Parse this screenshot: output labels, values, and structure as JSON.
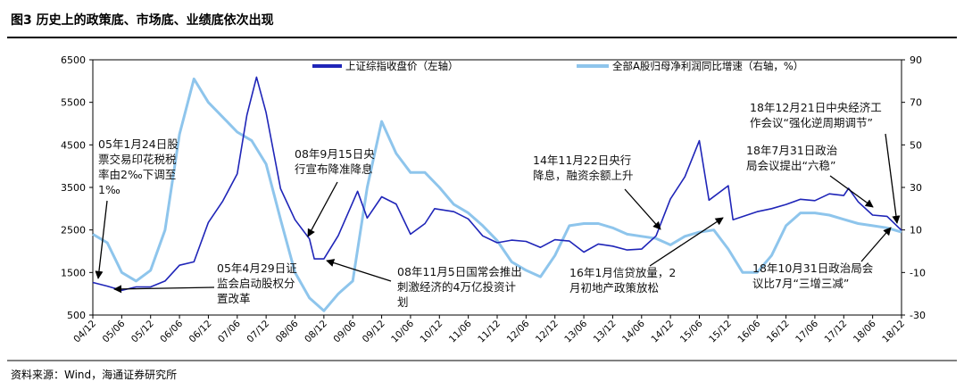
{
  "figure": {
    "title": "图3  历史上的政策底、市场底、业绩底依次出现",
    "source": "资料来源：Wind，海通证券研究所"
  },
  "colors": {
    "index_line": "#1f25b8",
    "profit_line": "#8ec5ec",
    "arrow": "#000000"
  },
  "chart_data": {
    "type": "line",
    "title": "",
    "xlabel": "",
    "ylabel_left": "",
    "ylabel_right": "",
    "x_tick_labels": [
      "04/12",
      "05/06",
      "05/12",
      "06/06",
      "06/12",
      "07/06",
      "07/12",
      "08/06",
      "08/12",
      "09/06",
      "09/12",
      "10/06",
      "10/12",
      "11/06",
      "11/12",
      "12/06",
      "12/12",
      "13/06",
      "13/12",
      "14/06",
      "14/12",
      "15/06",
      "15/12",
      "16/06",
      "16/12",
      "17/06",
      "17/12",
      "18/06",
      "18/12"
    ],
    "ylim_left": [
      500,
      6500
    ],
    "yticks_left": [
      500,
      1500,
      2500,
      3500,
      4500,
      5500,
      6500
    ],
    "ylim_right": [
      -30,
      90
    ],
    "yticks_right": [
      -30,
      -10,
      10,
      30,
      50,
      70,
      90
    ],
    "grid": false,
    "legend_position": "top",
    "series": [
      {
        "name": "上证综指收盘价（左轴）",
        "axis": "left",
        "x": [
          "2004-12",
          "2005-03",
          "2005-06",
          "2005-09",
          "2005-12",
          "2006-03",
          "2006-06",
          "2006-09",
          "2006-12",
          "2007-03",
          "2007-06",
          "2007-08",
          "2007-10",
          "2007-12",
          "2008-03",
          "2008-06",
          "2008-09",
          "2008-10",
          "2008-12",
          "2009-03",
          "2009-07",
          "2009-09",
          "2009-12",
          "2010-03",
          "2010-06",
          "2010-09",
          "2010-11",
          "2011-03",
          "2011-06",
          "2011-09",
          "2011-12",
          "2012-03",
          "2012-06",
          "2012-09",
          "2012-12",
          "2013-03",
          "2013-06",
          "2013-09",
          "2013-12",
          "2014-03",
          "2014-06",
          "2014-09",
          "2014-12",
          "2015-03",
          "2015-06",
          "2015-08",
          "2015-12",
          "2016-01",
          "2016-06",
          "2016-09",
          "2016-12",
          "2017-03",
          "2017-06",
          "2017-09",
          "2017-12",
          "2018-01",
          "2018-03",
          "2018-06",
          "2018-09",
          "2018-12"
        ],
        "values": [
          1266,
          1180,
          1080,
          1160,
          1161,
          1300,
          1670,
          1750,
          2675,
          3180,
          3820,
          5200,
          6092,
          5260,
          3470,
          2740,
          2290,
          1820,
          1820,
          2370,
          3410,
          2780,
          3280,
          3110,
          2400,
          2650,
          3000,
          2930,
          2760,
          2360,
          2200,
          2260,
          2230,
          2090,
          2270,
          2240,
          1980,
          2170,
          2120,
          2030,
          2050,
          2360,
          3230,
          3750,
          4600,
          3200,
          3540,
          2740,
          2930,
          3000,
          3100,
          3220,
          3190,
          3350,
          3310,
          3480,
          3160,
          2850,
          2820,
          2490
        ]
      },
      {
        "name": "全部A股归母净利润同比增速（右轴，%）",
        "axis": "right",
        "x": [
          "2004-12",
          "2005-03",
          "2005-06",
          "2005-09",
          "2005-12",
          "2006-03",
          "2006-06",
          "2006-09",
          "2006-12",
          "2007-03",
          "2007-06",
          "2007-09",
          "2007-12",
          "2008-03",
          "2008-06",
          "2008-09",
          "2008-12",
          "2009-03",
          "2009-06",
          "2009-09",
          "2009-12",
          "2010-03",
          "2010-06",
          "2010-09",
          "2010-12",
          "2011-03",
          "2011-06",
          "2011-09",
          "2011-12",
          "2012-03",
          "2012-06",
          "2012-09",
          "2012-12",
          "2013-03",
          "2013-06",
          "2013-09",
          "2013-12",
          "2014-03",
          "2014-06",
          "2014-09",
          "2014-12",
          "2015-03",
          "2015-06",
          "2015-09",
          "2015-12",
          "2016-03",
          "2016-06",
          "2016-09",
          "2016-12",
          "2017-03",
          "2017-06",
          "2017-09",
          "2017-12",
          "2018-03",
          "2018-06",
          "2018-09",
          "2018-12"
        ],
        "values": [
          8,
          4,
          -10,
          -14,
          -9,
          10,
          55,
          81,
          70,
          63,
          56,
          52,
          41,
          15,
          -10,
          -22,
          -28,
          -20,
          -14,
          30,
          61,
          46,
          37,
          37,
          30,
          22,
          18,
          12,
          5,
          -5,
          -9,
          -12,
          -2,
          12,
          13,
          13,
          11,
          8,
          7,
          6,
          3,
          7,
          9,
          10,
          1,
          -10,
          -10,
          -2,
          12,
          18,
          18,
          17,
          15,
          13,
          12,
          11,
          9
        ]
      }
    ],
    "annotations": [
      {
        "id": "a1",
        "lines": [
          "05年1月24日股",
          "票交易印花税税",
          "率由2‰下调至",
          "1‰"
        ]
      },
      {
        "id": "a2",
        "lines": [
          "05年4月29日证",
          "监会启动股权分",
          "置改革"
        ]
      },
      {
        "id": "a3",
        "lines": [
          "08年9月15日央",
          "行宣布降准降息"
        ]
      },
      {
        "id": "a4",
        "lines": [
          "08年11月5日国常会推出",
          "刺激经济的4万亿投资计",
          "划"
        ]
      },
      {
        "id": "a5",
        "lines": [
          "14年11月22日央行",
          "降息，融资余额上升"
        ]
      },
      {
        "id": "a6",
        "lines": [
          "16年1月信贷放量，2",
          "月初地产政策放松"
        ]
      },
      {
        "id": "a7",
        "lines": [
          "18年12月21日中央经济工",
          "作会议“强化逆周期调节”"
        ]
      },
      {
        "id": "a8",
        "lines": [
          "18年7月31日政治",
          "局会议提出“六稳”"
        ]
      },
      {
        "id": "a9",
        "lines": [
          "18年10月31日政治局会",
          "议比7月“三增三减”"
        ]
      }
    ]
  }
}
